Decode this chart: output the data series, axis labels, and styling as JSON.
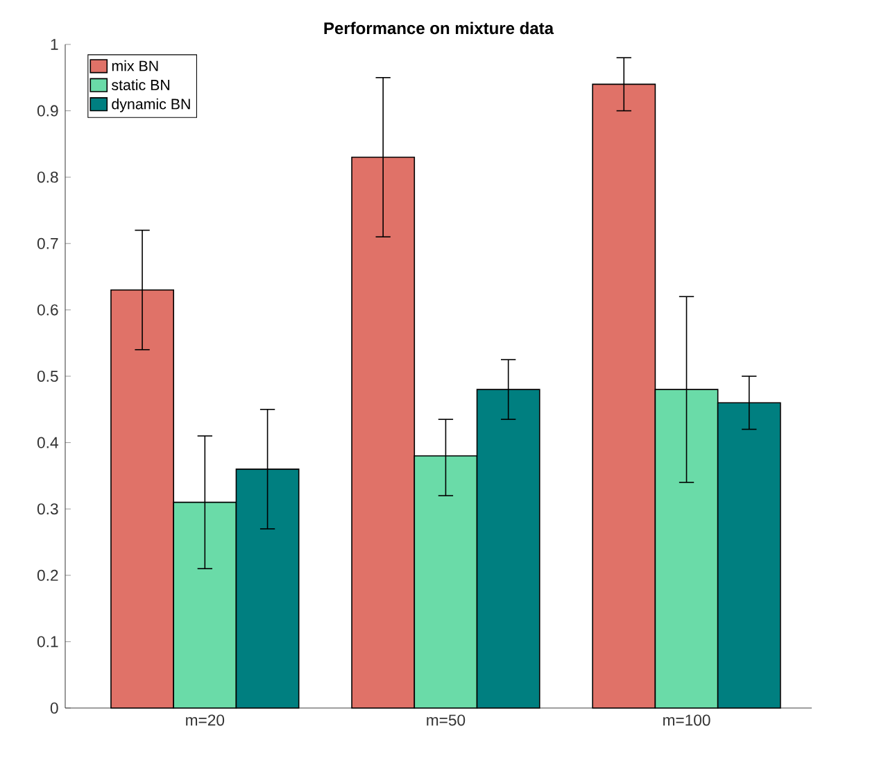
{
  "chart_data": {
    "type": "bar",
    "title": "Performance on mixture data",
    "categories": [
      "m=20",
      "m=50",
      "m=100"
    ],
    "series": [
      {
        "name": "mix BN",
        "color": "#e07268",
        "values": [
          0.63,
          0.83,
          0.94
        ],
        "errors": [
          [
            0.54,
            0.72
          ],
          [
            0.71,
            0.95
          ],
          [
            0.9,
            0.98
          ]
        ]
      },
      {
        "name": "static BN",
        "color": "#6adba8",
        "values": [
          0.31,
          0.38,
          0.48
        ],
        "errors": [
          [
            0.21,
            0.41
          ],
          [
            0.32,
            0.435
          ],
          [
            0.34,
            0.62
          ]
        ]
      },
      {
        "name": "dynamic BN",
        "color": "#007f80",
        "values": [
          0.36,
          0.48,
          0.46
        ],
        "errors": [
          [
            0.27,
            0.45
          ],
          [
            0.435,
            0.525
          ],
          [
            0.42,
            0.5
          ]
        ]
      }
    ],
    "ylim": [
      0,
      1
    ],
    "yticks": [
      0,
      0.1,
      0.2,
      0.3,
      0.4,
      0.5,
      0.6,
      0.7,
      0.8,
      0.9,
      1
    ],
    "legend": "top left",
    "grid": false
  }
}
